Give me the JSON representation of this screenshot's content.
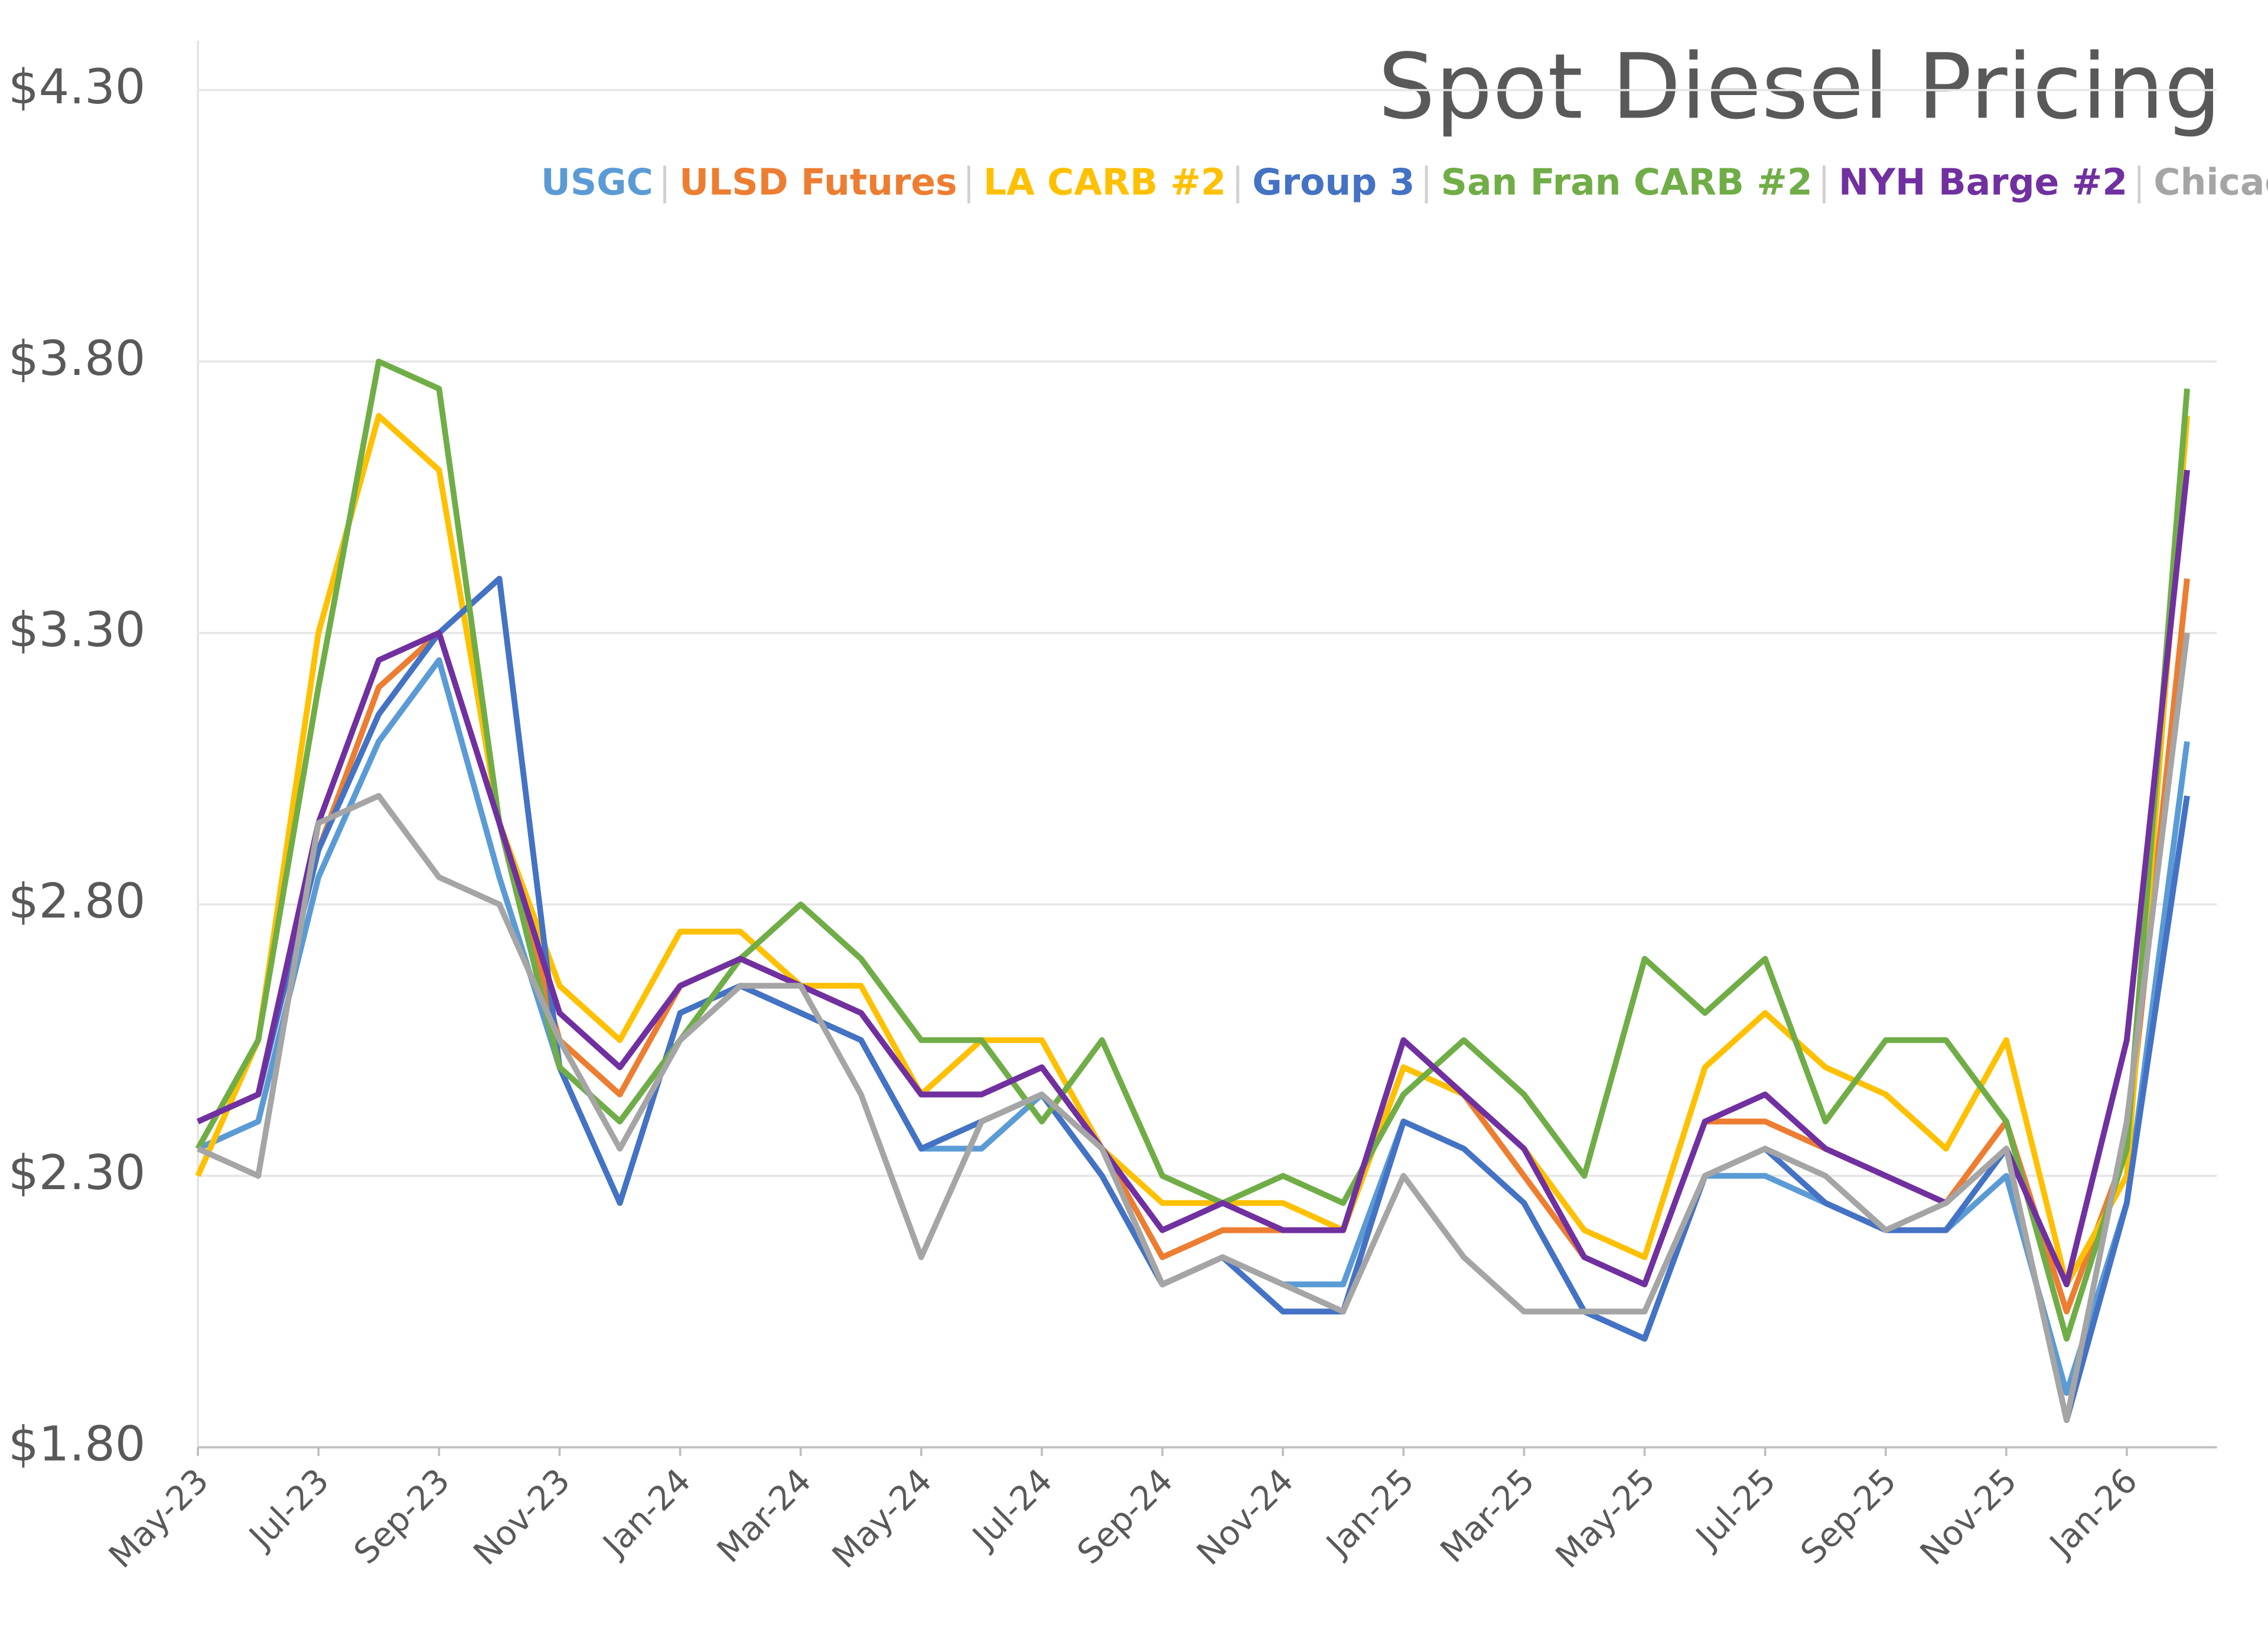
{
  "chart_data": {
    "type": "line",
    "title": "Spot Diesel Pricing",
    "categories": [
      "May-23",
      null,
      "Jul-23",
      null,
      "Sep-23",
      null,
      "Nov-23",
      null,
      "Jan-24",
      null,
      "Mar-24",
      null,
      "May-24",
      null,
      "Jul-24",
      null,
      "Sep-24",
      null,
      "Nov-24",
      null,
      "Jan-25",
      null,
      "Mar-25",
      null,
      "May-25",
      null,
      "Jul-25",
      null,
      "Sep-25",
      null,
      "Nov-25",
      null,
      "Jan-26",
      null
    ],
    "series": [
      {
        "name": "USGC",
        "color": "#5b9bd5",
        "values": [
          2.35,
          2.4,
          2.85,
          3.1,
          3.25,
          2.85,
          2.5,
          2.4,
          2.55,
          2.65,
          2.6,
          2.55,
          2.35,
          2.35,
          2.45,
          2.3,
          2.1,
          2.15,
          2.1,
          2.1,
          2.4,
          2.35,
          2.25,
          2.05,
          2.0,
          2.3,
          2.3,
          2.25,
          2.2,
          2.2,
          2.3,
          1.9,
          2.25,
          3.1
        ]
      },
      {
        "name": "ULSD Futures",
        "color": "#ed7d31",
        "values": [
          2.4,
          2.45,
          2.9,
          3.2,
          3.3,
          2.95,
          2.55,
          2.45,
          2.65,
          2.7,
          2.65,
          2.6,
          2.45,
          2.45,
          2.5,
          2.35,
          2.15,
          2.2,
          2.2,
          2.2,
          2.5,
          2.45,
          2.3,
          2.15,
          2.1,
          2.4,
          2.4,
          2.35,
          2.3,
          2.25,
          2.4,
          2.05,
          2.35,
          3.4
        ]
      },
      {
        "name": "LA CARB #2",
        "color": "#ffc000",
        "values": [
          2.3,
          2.55,
          3.3,
          3.7,
          3.6,
          2.95,
          2.65,
          2.55,
          2.75,
          2.75,
          2.65,
          2.65,
          2.45,
          2.55,
          2.55,
          2.35,
          2.25,
          2.25,
          2.25,
          2.2,
          2.5,
          2.45,
          2.35,
          2.2,
          2.15,
          2.5,
          2.6,
          2.5,
          2.45,
          2.35,
          2.55,
          2.1,
          2.3,
          3.7
        ]
      },
      {
        "name": "Group 3",
        "color": "#4472c4",
        "values": [
          2.4,
          2.45,
          2.9,
          3.15,
          3.3,
          3.4,
          2.5,
          2.25,
          2.6,
          2.65,
          2.6,
          2.55,
          2.35,
          2.4,
          2.45,
          2.3,
          2.1,
          2.15,
          2.05,
          2.05,
          2.4,
          2.35,
          2.25,
          2.05,
          2.0,
          2.3,
          2.35,
          2.25,
          2.2,
          2.2,
          2.35,
          1.85,
          2.25,
          3.0
        ]
      },
      {
        "name": "San Fran CARB #2",
        "color": "#70ad47",
        "values": [
          2.35,
          2.55,
          3.2,
          3.8,
          3.75,
          2.95,
          2.5,
          2.4,
          2.55,
          2.7,
          2.8,
          2.7,
          2.55,
          2.55,
          2.4,
          2.55,
          2.3,
          2.25,
          2.3,
          2.25,
          2.45,
          2.55,
          2.45,
          2.3,
          2.7,
          2.6,
          2.7,
          2.4,
          2.55,
          2.55,
          2.4,
          2.0,
          2.35,
          3.75
        ]
      },
      {
        "name": "NYH Barge #2",
        "color": "#7030a0",
        "values": [
          2.4,
          2.45,
          2.95,
          3.25,
          3.3,
          2.95,
          2.6,
          2.5,
          2.65,
          2.7,
          2.65,
          2.6,
          2.45,
          2.45,
          2.5,
          2.35,
          2.2,
          2.25,
          2.2,
          2.2,
          2.55,
          2.45,
          2.35,
          2.15,
          2.1,
          2.4,
          2.45,
          2.35,
          2.3,
          2.25,
          2.35,
          2.1,
          2.55,
          3.6
        ]
      },
      {
        "name": "Chicago",
        "color": "#a5a5a5",
        "values": [
          2.35,
          2.3,
          2.95,
          3.0,
          2.85,
          2.8,
          2.55,
          2.35,
          2.55,
          2.65,
          2.65,
          2.45,
          2.15,
          2.4,
          2.45,
          2.35,
          2.1,
          2.15,
          2.1,
          2.05,
          2.3,
          2.15,
          2.05,
          2.05,
          2.05,
          2.3,
          2.35,
          2.3,
          2.2,
          2.25,
          2.35,
          1.85,
          2.4,
          3.3
        ]
      }
    ],
    "ylim": [
      1.8,
      4.3
    ],
    "yticks": [
      {
        "value": 1.8,
        "label": "$1.80"
      },
      {
        "value": 2.3,
        "label": "$2.30"
      },
      {
        "value": 2.8,
        "label": "$2.80"
      },
      {
        "value": 3.3,
        "label": "$3.30"
      },
      {
        "value": 3.8,
        "label": "$3.80"
      },
      {
        "value": 4.3,
        "label": "$4.30"
      }
    ],
    "grid": true,
    "legend": "top"
  }
}
